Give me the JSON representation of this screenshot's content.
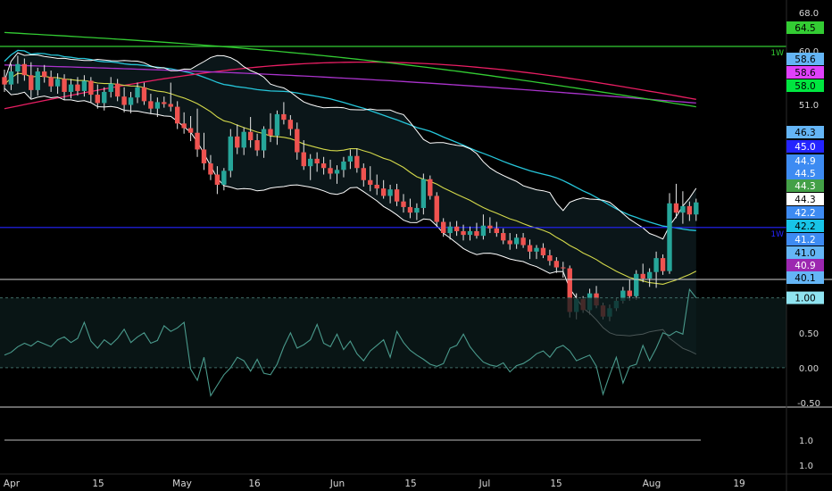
{
  "chart_data": {
    "type": "candlestick",
    "title": "",
    "xlabel": "",
    "ylabel": "",
    "x_ticks": [
      "Apr",
      "15",
      "May",
      "16",
      "Jun",
      "15",
      "Jul",
      "15",
      "Aug",
      "19"
    ],
    "price_panel": {
      "ylim": [
        39.5,
        69.5
      ],
      "y_ticks": [
        "68.0",
        "60.0",
        "51.0"
      ],
      "candles_ohlc": [
        [
          61.2,
          62.0,
          59.6,
          60.4
        ],
        [
          60.4,
          62.6,
          59.8,
          61.8
        ],
        [
          61.8,
          63.5,
          60.5,
          62.6
        ],
        [
          62.6,
          63.2,
          60.8,
          61.4
        ],
        [
          61.4,
          62.8,
          58.9,
          59.8
        ],
        [
          59.8,
          62.2,
          59.2,
          61.8
        ],
        [
          61.8,
          62.5,
          60.6,
          61.2
        ],
        [
          61.2,
          61.9,
          59.6,
          60.2
        ],
        [
          60.2,
          61.6,
          59.4,
          61.0
        ],
        [
          61.0,
          61.5,
          58.7,
          59.6
        ],
        [
          59.6,
          61.0,
          58.9,
          60.4
        ],
        [
          60.4,
          61.2,
          59.2,
          59.7
        ],
        [
          59.7,
          61.4,
          59.1,
          60.8
        ],
        [
          60.8,
          61.2,
          58.5,
          59.3
        ],
        [
          59.3,
          60.4,
          57.8,
          58.4
        ],
        [
          58.4,
          60.1,
          57.6,
          59.6
        ],
        [
          59.6,
          61.2,
          59.0,
          60.5
        ],
        [
          60.5,
          61.0,
          58.6,
          59.1
        ],
        [
          59.1,
          60.1,
          57.4,
          58.2
        ],
        [
          58.2,
          59.6,
          57.3,
          59.0
        ],
        [
          59.0,
          60.6,
          58.4,
          60.1
        ],
        [
          60.1,
          60.6,
          58.2,
          58.6
        ],
        [
          58.6,
          59.4,
          57.2,
          57.8
        ],
        [
          57.8,
          59.0,
          56.9,
          58.5
        ],
        [
          58.5,
          59.1,
          57.9,
          58.3
        ],
        [
          58.3,
          60.6,
          57.5,
          58.0
        ],
        [
          58.0,
          58.6,
          55.6,
          56.2
        ],
        [
          56.2,
          57.4,
          55.1,
          55.7
        ],
        [
          55.7,
          57.0,
          54.3,
          55.2
        ],
        [
          55.2,
          57.8,
          52.6,
          53.4
        ],
        [
          53.4,
          55.2,
          51.2,
          51.9
        ],
        [
          51.9,
          52.8,
          50.1,
          50.7
        ],
        [
          50.7,
          51.6,
          48.6,
          49.6
        ],
        [
          49.6,
          51.4,
          49.0,
          51.1
        ],
        [
          51.1,
          55.6,
          50.4,
          54.8
        ],
        [
          54.8,
          56.1,
          52.9,
          53.6
        ],
        [
          53.6,
          55.8,
          52.8,
          55.3
        ],
        [
          55.3,
          56.9,
          53.6,
          54.4
        ],
        [
          54.4,
          55.1,
          52.7,
          53.3
        ],
        [
          53.3,
          55.9,
          52.5,
          55.6
        ],
        [
          55.6,
          57.3,
          54.2,
          54.9
        ],
        [
          54.9,
          57.6,
          53.9,
          57.2
        ],
        [
          57.2,
          58.5,
          56.1,
          56.6
        ],
        [
          56.6,
          57.1,
          54.9,
          55.6
        ],
        [
          55.6,
          56.3,
          52.3,
          53.1
        ],
        [
          53.1,
          54.4,
          51.2,
          51.6
        ],
        [
          51.6,
          52.9,
          50.1,
          52.4
        ],
        [
          52.4,
          53.1,
          51.0,
          51.9
        ],
        [
          51.9,
          52.6,
          50.7,
          51.4
        ],
        [
          51.4,
          52.3,
          50.2,
          50.8
        ],
        [
          50.8,
          51.7,
          49.7,
          51.2
        ],
        [
          51.2,
          52.6,
          50.4,
          52.1
        ],
        [
          52.1,
          53.4,
          51.3,
          52.7
        ],
        [
          52.7,
          53.5,
          50.9,
          51.4
        ],
        [
          51.4,
          51.9,
          49.4,
          50.1
        ],
        [
          50.1,
          51.6,
          48.9,
          49.6
        ],
        [
          49.6,
          50.7,
          48.5,
          49.2
        ],
        [
          49.2,
          50.1,
          48.1,
          48.4
        ],
        [
          48.4,
          49.6,
          47.6,
          49.1
        ],
        [
          49.1,
          49.7,
          47.3,
          47.8
        ],
        [
          47.8,
          48.6,
          46.6,
          47.2
        ],
        [
          47.2,
          48.1,
          46.0,
          46.6
        ],
        [
          46.6,
          47.6,
          45.8,
          47.1
        ],
        [
          47.1,
          50.8,
          46.4,
          50.2
        ],
        [
          50.2,
          50.6,
          48.0,
          48.4
        ],
        [
          48.4,
          48.8,
          45.1,
          45.6
        ],
        [
          45.6,
          46.0,
          44.0,
          44.4
        ],
        [
          44.4,
          45.6,
          43.7,
          45.1
        ],
        [
          45.1,
          45.7,
          44.1,
          44.6
        ],
        [
          44.6,
          45.3,
          43.6,
          44.2
        ],
        [
          44.2,
          45.1,
          43.6,
          44.6
        ],
        [
          44.6,
          45.5,
          43.8,
          44.1
        ],
        [
          44.1,
          46.4,
          43.7,
          45.2
        ],
        [
          45.2,
          46.1,
          44.4,
          44.9
        ],
        [
          44.9,
          45.6,
          44.0,
          44.4
        ],
        [
          44.4,
          44.9,
          43.2,
          43.6
        ],
        [
          43.6,
          44.4,
          42.6,
          43.2
        ],
        [
          43.2,
          44.3,
          42.7,
          43.9
        ],
        [
          43.9,
          44.4,
          42.8,
          43.1
        ],
        [
          43.1,
          43.7,
          41.6,
          42.4
        ],
        [
          42.4,
          43.1,
          41.6,
          42.8
        ],
        [
          42.8,
          43.3,
          41.7,
          42.0
        ],
        [
          42.0,
          42.6,
          40.9,
          41.4
        ],
        [
          41.4,
          41.8,
          40.1,
          40.7
        ],
        [
          40.7,
          41.3,
          39.6,
          40.6
        ],
        [
          40.6,
          40.9,
          35.3,
          35.9
        ],
        [
          35.9,
          37.9,
          35.1,
          37.3
        ],
        [
          37.3,
          37.6,
          35.8,
          36.1
        ],
        [
          36.1,
          38.4,
          35.6,
          37.9
        ],
        [
          37.9,
          38.7,
          36.3,
          36.6
        ],
        [
          36.6,
          36.9,
          35.1,
          35.4
        ],
        [
          35.4,
          36.7,
          34.9,
          36.3
        ],
        [
          36.3,
          37.4,
          36.0,
          37.1
        ],
        [
          37.1,
          38.6,
          36.8,
          38.2
        ],
        [
          38.2,
          39.4,
          37.1,
          37.6
        ],
        [
          37.6,
          40.4,
          37.2,
          40.0
        ],
        [
          40.0,
          41.1,
          39.1,
          39.5
        ],
        [
          39.5,
          40.6,
          38.6,
          40.2
        ],
        [
          40.2,
          42.4,
          38.5,
          41.7
        ],
        [
          41.7,
          42.1,
          39.9,
          40.3
        ],
        [
          40.3,
          48.7,
          40.0,
          47.6
        ],
        [
          47.6,
          49.7,
          46.0,
          46.6
        ],
        [
          46.6,
          48.9,
          45.4,
          47.3
        ],
        [
          47.3,
          47.8,
          45.7,
          46.4
        ],
        [
          46.4,
          48.1,
          45.7,
          47.7
        ]
      ],
      "candle_colors": {
        "up": "#26a69a",
        "down": "#ef5350"
      },
      "bollinger": {
        "upper": "#ffffff",
        "basis": "#d4d94a",
        "lower": "#ffffff"
      },
      "moving_averages": [
        {
          "color": "#26c6da"
        },
        {
          "color": "#e91e63"
        },
        {
          "color": "#aa33cc"
        },
        {
          "color": "#33cc33"
        }
      ],
      "horizontal_lines": [
        {
          "value": 64.5,
          "color": "#33cc33",
          "label": "1W"
        },
        {
          "value": 45.0,
          "color": "#2424ff",
          "label": "1W"
        }
      ],
      "price_tags": [
        {
          "text": "64.5",
          "bg": "#33cc33",
          "fg": "#000000"
        },
        {
          "text": "58.6",
          "bg": "#64b5f6",
          "fg": "#000000"
        },
        {
          "text": "58.6",
          "bg": "#e040fb",
          "fg": "#000000"
        },
        {
          "text": "58.0",
          "bg": "#00e640",
          "fg": "#000000"
        },
        {
          "text": "46.3",
          "bg": "#64b5f6",
          "fg": "#000000"
        },
        {
          "text": "45.0",
          "bg": "#2424ff",
          "fg": "#ffffff"
        },
        {
          "text": "44.9",
          "bg": "#3d8bf2",
          "fg": "#ffffff"
        },
        {
          "text": "44.5",
          "bg": "#3d8bf2",
          "fg": "#ffffff"
        },
        {
          "text": "44.3",
          "bg": "#43a047",
          "fg": "#ffffff"
        },
        {
          "text": "44.3",
          "bg": "#ffffff",
          "fg": "#000000"
        },
        {
          "text": "42.2",
          "bg": "#3d8bf2",
          "fg": "#ffffff"
        },
        {
          "text": "42.2",
          "bg": "#18c4e8",
          "fg": "#000000"
        },
        {
          "text": "41.2",
          "bg": "#3d8bf2",
          "fg": "#ffffff"
        },
        {
          "text": "41.0",
          "bg": "#64b5f6",
          "fg": "#000000"
        },
        {
          "text": "40.9",
          "bg": "#9c27b0",
          "fg": "#ffffff"
        },
        {
          "text": "40.1",
          "bg": "#64b5f6",
          "fg": "#000000"
        }
      ]
    },
    "oscillator_panel": {
      "ylim": [
        -0.55,
        1.25
      ],
      "y_ticks": [
        "1.00",
        "0.50",
        "0.00",
        "-0.50"
      ],
      "reference_lines": [
        1.0,
        0.0
      ],
      "last_value_tag": "1.00",
      "line_color": "#4a9a8c",
      "values": [
        0.18,
        0.22,
        0.3,
        0.35,
        0.31,
        0.38,
        0.34,
        0.3,
        0.4,
        0.44,
        0.36,
        0.42,
        0.65,
        0.38,
        0.28,
        0.4,
        0.33,
        0.42,
        0.55,
        0.36,
        0.44,
        0.5,
        0.35,
        0.39,
        0.6,
        0.52,
        0.57,
        0.65,
        -0.02,
        -0.18,
        0.15,
        -0.4,
        -0.25,
        -0.1,
        0.0,
        0.15,
        0.1,
        -0.05,
        0.12,
        -0.08,
        -0.1,
        0.05,
        0.3,
        0.5,
        0.28,
        0.33,
        0.4,
        0.62,
        0.35,
        0.3,
        0.48,
        0.26,
        0.38,
        0.2,
        0.1,
        0.24,
        0.32,
        0.4,
        0.15,
        0.52,
        0.36,
        0.25,
        0.18,
        0.12,
        0.05,
        0.02,
        0.06,
        0.28,
        0.32,
        0.48,
        0.3,
        0.18,
        0.08,
        0.04,
        0.02,
        0.07,
        -0.06,
        0.03,
        0.06,
        0.12,
        0.2,
        0.24,
        0.15,
        0.28,
        0.32,
        0.24,
        0.1,
        0.14,
        0.18,
        0.02,
        -0.38,
        -0.1,
        0.15,
        -0.22,
        0.02,
        0.05,
        0.32,
        0.1,
        0.28,
        0.5,
        0.46,
        0.52,
        0.48,
        1.12,
        1.0
      ]
    },
    "bottom_panel": {
      "y_ticks": [
        "1.0",
        "1.0"
      ],
      "line_value": 1.0
    }
  }
}
